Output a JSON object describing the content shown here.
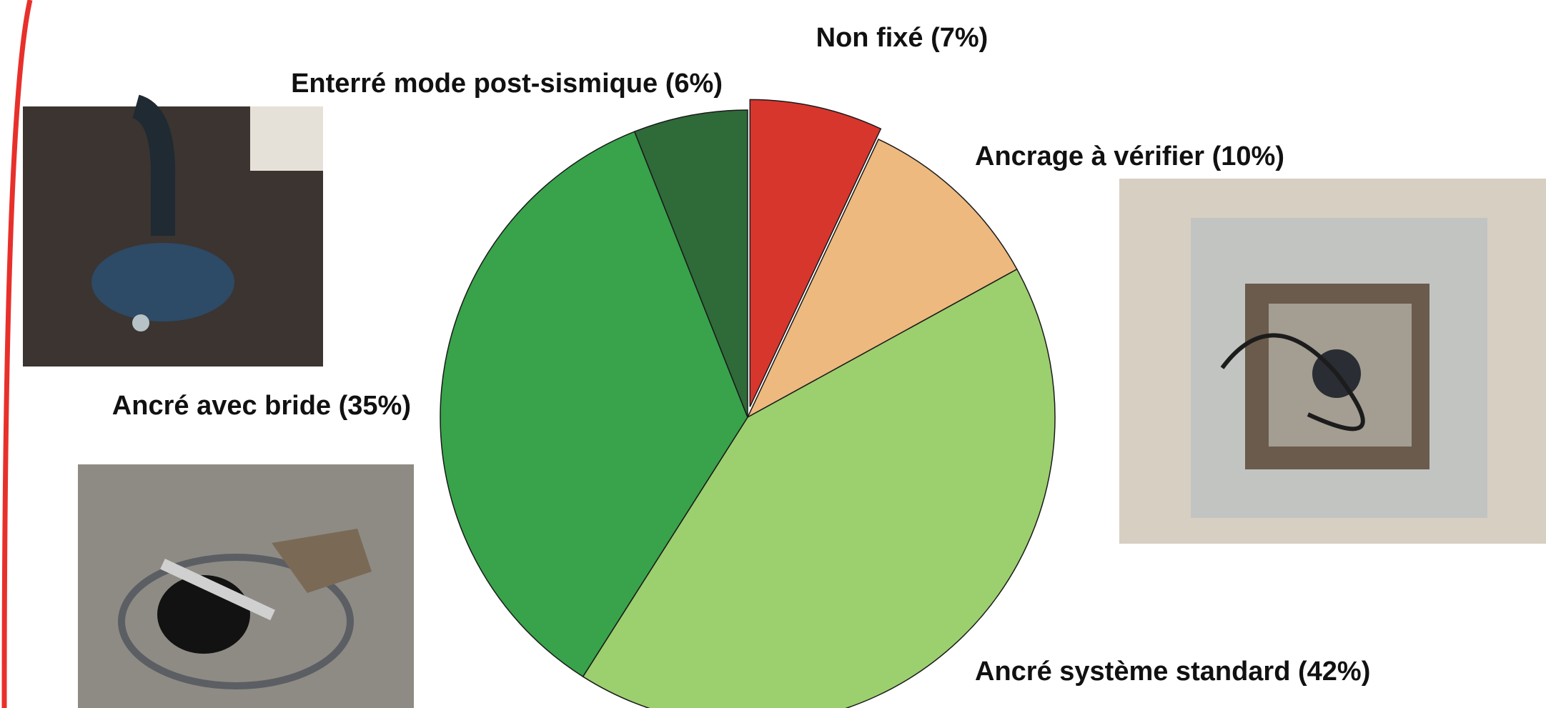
{
  "chart_data": {
    "type": "pie",
    "categories": [
      "Non fixé",
      "Ancrage à vérifier",
      "Ancré système standard",
      "Ancré avec bride",
      "Enterré mode post-sismique"
    ],
    "values": [
      7,
      10,
      42,
      35,
      6
    ],
    "value_labels": [
      "(7%)",
      "(10%)",
      "(42%)",
      "(35%)",
      "(6%)"
    ],
    "colors": [
      "#d7362d",
      "#edb97f",
      "#9ccf6e",
      "#38a34a",
      "#2f6a39"
    ],
    "explode": [
      true,
      false,
      false,
      false,
      false
    ]
  }
}
